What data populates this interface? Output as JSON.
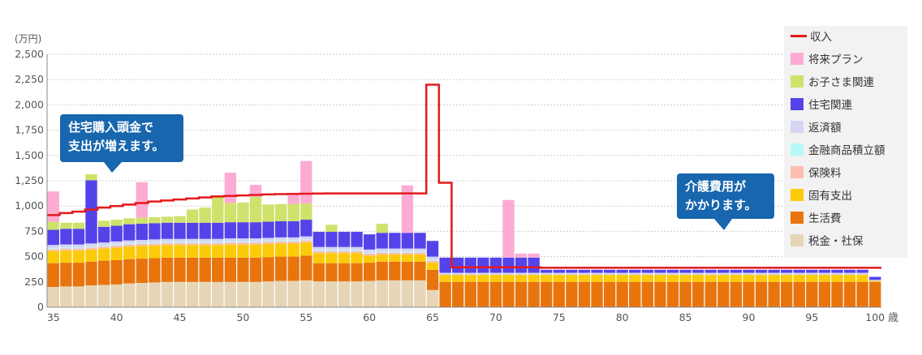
{
  "chart_data": {
    "type": "bar",
    "stacked": true,
    "y_unit": "(万円)",
    "x_unit": "歳",
    "ylim": [
      0,
      2500
    ],
    "y_ticks": [
      "0",
      "250",
      "500",
      "750",
      "1,000",
      "1,250",
      "1,500",
      "1,750",
      "2,000",
      "2,250",
      "2,500"
    ],
    "x_ticks": [
      "35",
      "40",
      "45",
      "50",
      "55",
      "60",
      "65",
      "70",
      "75",
      "80",
      "85",
      "90",
      "95",
      "100"
    ],
    "x_tick_values": [
      35,
      40,
      45,
      50,
      55,
      60,
      65,
      70,
      75,
      80,
      85,
      90,
      95,
      100
    ],
    "x_start": 35,
    "grid": true,
    "legend": "right",
    "series": [
      {
        "name": "税金・社保",
        "color": "#e6d6b7",
        "values": [
          200,
          205,
          205,
          215,
          220,
          225,
          235,
          240,
          245,
          250,
          250,
          250,
          250,
          250,
          250,
          250,
          250,
          255,
          260,
          260,
          265,
          255,
          255,
          255,
          255,
          260,
          265,
          265,
          265,
          265,
          170,
          0,
          0,
          0,
          0,
          0,
          0,
          0,
          0,
          0,
          0,
          0,
          0,
          0,
          0,
          0,
          0,
          0,
          0,
          0,
          0,
          0,
          0,
          0,
          0,
          0,
          0,
          0,
          0,
          0,
          0,
          0,
          0,
          0,
          0,
          0
        ]
      },
      {
        "name": "生活費",
        "color": "#e8740e",
        "values": [
          235,
          235,
          235,
          235,
          240,
          240,
          240,
          240,
          240,
          240,
          240,
          240,
          240,
          240,
          240,
          240,
          240,
          240,
          240,
          240,
          245,
          180,
          180,
          180,
          180,
          180,
          185,
          185,
          185,
          185,
          200,
          250,
          250,
          250,
          250,
          250,
          250,
          250,
          250,
          250,
          250,
          250,
          250,
          250,
          250,
          250,
          250,
          250,
          250,
          250,
          250,
          250,
          250,
          250,
          250,
          250,
          250,
          250,
          250,
          250,
          250,
          250,
          250,
          250,
          250,
          250
        ]
      },
      {
        "name": "固有支出",
        "color": "#fbcb0a",
        "values": [
          120,
          120,
          120,
          120,
          120,
          125,
          125,
          125,
          125,
          125,
          125,
          125,
          125,
          125,
          130,
          130,
          130,
          130,
          130,
          130,
          130,
          100,
          100,
          100,
          100,
          70,
          70,
          70,
          70,
          70,
          70,
          70,
          70,
          70,
          70,
          70,
          70,
          70,
          70,
          70,
          70,
          70,
          70,
          70,
          70,
          70,
          70,
          70,
          70,
          70,
          70,
          70,
          70,
          70,
          70,
          70,
          70,
          70,
          70,
          70,
          70,
          70,
          70,
          70,
          70,
          10
        ]
      },
      {
        "name": "保険料",
        "color": "#fdbdb0",
        "values": [
          20,
          20,
          20,
          20,
          20,
          20,
          20,
          20,
          20,
          20,
          20,
          20,
          20,
          20,
          20,
          20,
          20,
          20,
          20,
          20,
          20,
          20,
          20,
          20,
          20,
          20,
          20,
          20,
          20,
          20,
          20,
          0,
          0,
          0,
          0,
          0,
          0,
          0,
          0,
          0,
          0,
          0,
          0,
          0,
          0,
          0,
          0,
          0,
          0,
          0,
          0,
          0,
          0,
          0,
          0,
          0,
          0,
          0,
          0,
          0,
          0,
          0,
          0,
          0,
          0,
          0
        ]
      },
      {
        "name": "金融商品積立額",
        "color": "#b7f9f9",
        "values": [
          10,
          10,
          10,
          10,
          10,
          10,
          10,
          10,
          10,
          10,
          10,
          10,
          10,
          10,
          10,
          10,
          10,
          10,
          10,
          10,
          10,
          10,
          10,
          10,
          10,
          10,
          10,
          10,
          10,
          10,
          10,
          0,
          0,
          0,
          0,
          0,
          0,
          0,
          0,
          0,
          0,
          0,
          0,
          0,
          0,
          0,
          0,
          0,
          0,
          0,
          0,
          0,
          0,
          0,
          0,
          0,
          0,
          0,
          0,
          0,
          0,
          0,
          0,
          0,
          0,
          0
        ]
      },
      {
        "name": "返済額",
        "color": "#d5d5f4",
        "values": [
          30,
          30,
          30,
          30,
          30,
          30,
          30,
          30,
          30,
          30,
          30,
          30,
          30,
          30,
          30,
          30,
          30,
          30,
          30,
          30,
          30,
          30,
          30,
          30,
          30,
          30,
          30,
          30,
          30,
          30,
          30,
          20,
          20,
          20,
          20,
          20,
          20,
          20,
          20,
          20,
          20,
          20,
          20,
          20,
          20,
          20,
          20,
          20,
          20,
          20,
          20,
          20,
          20,
          20,
          20,
          20,
          20,
          20,
          20,
          20,
          20,
          20,
          20,
          20,
          20,
          10
        ]
      },
      {
        "name": "住宅関連",
        "color": "#5543ea",
        "values": [
          150,
          155,
          155,
          625,
          155,
          155,
          160,
          160,
          160,
          160,
          160,
          160,
          160,
          160,
          160,
          160,
          160,
          160,
          160,
          160,
          165,
          150,
          150,
          150,
          150,
          150,
          155,
          155,
          155,
          155,
          155,
          150,
          150,
          150,
          150,
          150,
          150,
          150,
          150,
          30,
          30,
          30,
          30,
          30,
          30,
          30,
          30,
          30,
          30,
          30,
          30,
          30,
          30,
          30,
          30,
          30,
          30,
          30,
          30,
          30,
          30,
          30,
          30,
          30,
          30,
          30
        ]
      },
      {
        "name": "お子さま関連",
        "color": "#cfe26c",
        "values": [
          80,
          60,
          60,
          60,
          60,
          60,
          60,
          60,
          60,
          60,
          65,
          130,
          150,
          270,
          190,
          195,
          250,
          170,
          170,
          170,
          160,
          0,
          70,
          0,
          0,
          0,
          90,
          0,
          0,
          0,
          0,
          0,
          0,
          0,
          0,
          0,
          0,
          0,
          0,
          0,
          0,
          0,
          0,
          0,
          0,
          0,
          0,
          0,
          0,
          0,
          0,
          0,
          0,
          0,
          0,
          0,
          0,
          0,
          0,
          0,
          0,
          0,
          0,
          0,
          0,
          0
        ]
      },
      {
        "name": "将来プラン",
        "color": "#fcacd3",
        "values": [
          300,
          0,
          0,
          0,
          0,
          0,
          0,
          350,
          0,
          0,
          0,
          0,
          0,
          0,
          300,
          0,
          120,
          0,
          0,
          100,
          420,
          0,
          0,
          0,
          0,
          0,
          0,
          0,
          470,
          0,
          0,
          0,
          0,
          0,
          0,
          0,
          570,
          40,
          40,
          0,
          0,
          0,
          0,
          0,
          0,
          0,
          0,
          0,
          0,
          0,
          0,
          0,
          0,
          0,
          0,
          0,
          0,
          0,
          0,
          0,
          0,
          0,
          0,
          0,
          0,
          0
        ]
      }
    ],
    "income": {
      "name": "収入",
      "color": "#e31a1c",
      "values": [
        910,
        930,
        945,
        965,
        985,
        1000,
        1015,
        1030,
        1045,
        1055,
        1065,
        1075,
        1085,
        1095,
        1100,
        1105,
        1110,
        1115,
        1118,
        1120,
        1122,
        1124,
        1125,
        1125,
        1125,
        1125,
        1125,
        1125,
        1125,
        1125,
        2200,
        1230,
        395,
        395,
        395,
        395,
        395,
        395,
        395,
        390,
        390,
        390,
        390,
        390,
        390,
        390,
        390,
        390,
        390,
        390,
        390,
        390,
        390,
        390,
        390,
        390,
        390,
        390,
        390,
        390,
        390,
        390,
        390,
        390,
        390,
        390
      ]
    },
    "callouts": [
      {
        "lines": [
          "住宅購入頭金で",
          "支出が増えます。"
        ]
      },
      {
        "lines": [
          "介護費用が",
          "かかります。"
        ]
      }
    ]
  }
}
